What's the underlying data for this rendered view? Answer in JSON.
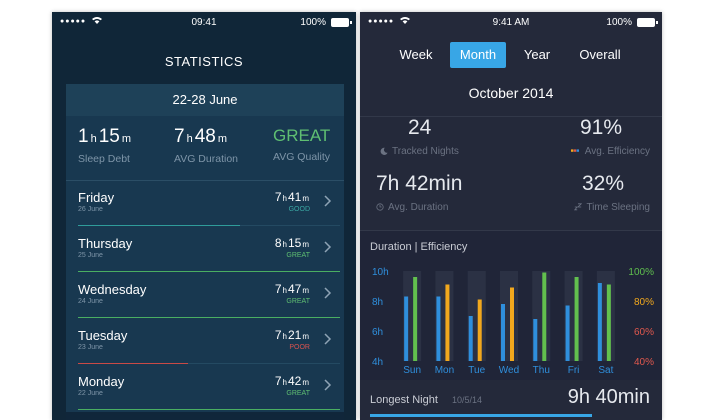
{
  "left": {
    "status": {
      "signal": "●●●●●",
      "time": "09:41",
      "battery": "100%"
    },
    "title": "STATISTICS",
    "week_range": "22-28 June",
    "summary": {
      "sleep_debt": {
        "h": "1",
        "m": "15",
        "label": "Sleep Debt"
      },
      "avg_duration": {
        "h": "7",
        "m": "48",
        "label": "AVG Duration"
      },
      "avg_quality": {
        "value": "GREAT",
        "label": "AVG Quality"
      }
    },
    "units": {
      "h": "h",
      "m": "m"
    },
    "days": [
      {
        "name": "Friday",
        "date": "26 June",
        "h": "7",
        "m": "41",
        "quality": "GOOD",
        "quality_color": "#3aa7a3",
        "bar": 0.62,
        "bar_color": "#2f9c9a"
      },
      {
        "name": "Thursday",
        "date": "25 June",
        "h": "8",
        "m": "15",
        "quality": "GREAT",
        "quality_color": "#5fbf72",
        "bar": 1.0,
        "bar_color": "#4aae62"
      },
      {
        "name": "Wednesday",
        "date": "24 June",
        "h": "7",
        "m": "47",
        "quality": "GREAT",
        "quality_color": "#5fbf72",
        "bar": 1.0,
        "bar_color": "#4aae62"
      },
      {
        "name": "Tuesday",
        "date": "23 June",
        "h": "7",
        "m": "21",
        "quality": "POOR",
        "quality_color": "#d9534f",
        "bar": 0.42,
        "bar_color": "#c94a46"
      },
      {
        "name": "Monday",
        "date": "22 June",
        "h": "7",
        "m": "42",
        "quality": "GREAT",
        "quality_color": "#5fbf72",
        "bar": 1.0,
        "bar_color": "#4aae62"
      }
    ]
  },
  "right": {
    "status": {
      "signal": "●●●●●",
      "time": "9:41 AM",
      "battery": "100%"
    },
    "tabs": [
      "Week",
      "Month",
      "Year",
      "Overall"
    ],
    "active_tab": 1,
    "month": "October 2014",
    "stats": {
      "tracked": {
        "value": "24",
        "label": "Tracked Nights"
      },
      "efficiency": {
        "value": "91%",
        "label": "Avg. Efficiency"
      },
      "duration": {
        "value": "7h 42min",
        "label": "Avg. Duration"
      },
      "time_sleeping": {
        "value": "32%",
        "label": "Time Sleeping"
      }
    },
    "longest": {
      "label": "Longest Night",
      "date": "10/5/14",
      "value": "9h 40min",
      "bar": 0.82
    }
  },
  "chart_data": {
    "type": "bar",
    "title": "Duration | Efficiency",
    "categories": [
      "Sun",
      "Mon",
      "Tue",
      "Wed",
      "Thu",
      "Fri",
      "Sat"
    ],
    "y_left": {
      "ticks": [
        "10h",
        "8h",
        "6h",
        "4h"
      ],
      "min": 4,
      "max": 10
    },
    "y_right": {
      "ticks": [
        "100%",
        "80%",
        "60%",
        "40%"
      ],
      "tick_colors": [
        "#5fbf4e",
        "#f2a81d",
        "#e0584d",
        "#e0584d"
      ],
      "min": 40,
      "max": 100
    },
    "series": [
      {
        "values": [
          8.3,
          8.3,
          7.0,
          7.8,
          6.8,
          7.7,
          9.2
        ],
        "color": "#2f8fdc"
      },
      {
        "values": [
          96,
          91,
          81,
          89,
          99,
          96,
          91
        ],
        "colors": [
          "#62c04e",
          "#f2a81d",
          "#f2a81d",
          "#f2a81d",
          "#62c04e",
          "#62c04e",
          "#62c04e"
        ]
      }
    ]
  }
}
